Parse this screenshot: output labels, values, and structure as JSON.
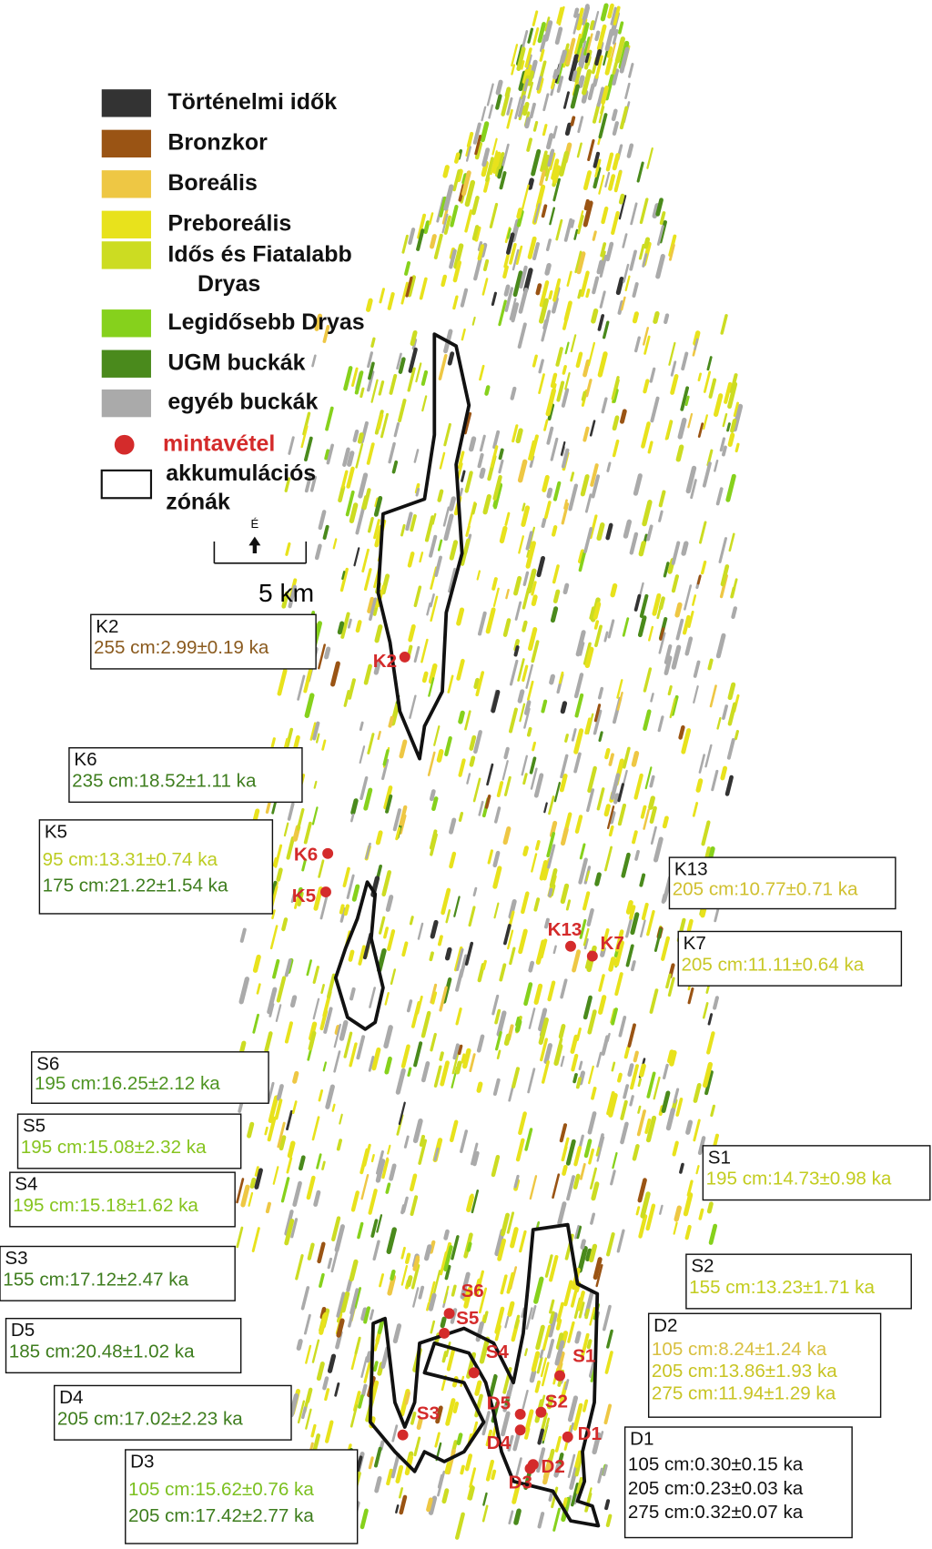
{
  "legend": {
    "items": [
      {
        "label": "Történelmi idők",
        "color": "#333333"
      },
      {
        "label": "Bronzkor",
        "color": "#9a5414"
      },
      {
        "label": "Boreális",
        "color": "#eec744"
      },
      {
        "label": "Preboreális",
        "color": "#e8e21c"
      },
      {
        "label": "Idős és Fiatalabb Dryas",
        "color": "#ccdc22"
      },
      {
        "label": "Legidősebb Dryas",
        "color": "#86d11c"
      },
      {
        "label": "UGM buckák",
        "color": "#4a8a1c"
      },
      {
        "label": "egyéb buckák",
        "color": "#aaaaaa"
      }
    ],
    "sample": {
      "label": "mintavétel",
      "color": "#d42b2b"
    },
    "zone": {
      "label": "akkumulációs zónák"
    }
  },
  "scale": {
    "north": "É",
    "label": "5 km"
  },
  "points": [
    "K2",
    "K6",
    "K5",
    "K13",
    "K7",
    "S6",
    "S5",
    "S4",
    "S1",
    "S2",
    "S3",
    "D5",
    "D4",
    "D1",
    "D2",
    "D3"
  ],
  "boxes": [
    {
      "id": "K2",
      "lines": [
        {
          "text": "255 cm:2.99±0.19 ka",
          "color": "#8a5a1e"
        }
      ]
    },
    {
      "id": "K6",
      "lines": [
        {
          "text": "235 cm:18.52±1.11 ka",
          "color": "#3e7d1e"
        }
      ]
    },
    {
      "id": "K5",
      "lines": [
        {
          "text": "95 cm:13.31±0.74 ka",
          "color": "#bccc22"
        },
        {
          "text": "175 cm:21.22±1.54 ka",
          "color": "#3e7d1e"
        }
      ]
    },
    {
      "id": "K13",
      "lines": [
        {
          "text": "205 cm:10.77±0.71 ka",
          "color": "#d0c030"
        }
      ]
    },
    {
      "id": "K7",
      "lines": [
        {
          "text": "205 cm:11.11±0.64 ka",
          "color": "#c8c826"
        }
      ]
    },
    {
      "id": "S6",
      "lines": [
        {
          "text": "195 cm:16.25±2.12 ka",
          "color": "#4e9422"
        }
      ]
    },
    {
      "id": "S5",
      "lines": [
        {
          "text": "195 cm:15.08±2.32 ka",
          "color": "#86c41e"
        }
      ]
    },
    {
      "id": "S4",
      "lines": [
        {
          "text": "195 cm:15.18±1.62 ka",
          "color": "#86c41e"
        }
      ]
    },
    {
      "id": "S1",
      "lines": [
        {
          "text": "195 cm:14.73±0.98 ka",
          "color": "#c2cc1e"
        }
      ]
    },
    {
      "id": "S3",
      "lines": [
        {
          "text": "155 cm:17.12±2.47 ka",
          "color": "#3e7d1e"
        }
      ]
    },
    {
      "id": "S2",
      "lines": [
        {
          "text": "155 cm:13.23±1.71 ka",
          "color": "#c2cc1e"
        }
      ]
    },
    {
      "id": "D2",
      "lines": [
        {
          "text": "105 cm:8.24±1.24 ka",
          "color": "#d8c040"
        },
        {
          "text": "205 cm:13.86±1.93 ka",
          "color": "#c8c424"
        },
        {
          "text": "275 cm:11.94±1.29 ka",
          "color": "#c8c424"
        }
      ]
    },
    {
      "id": "D5",
      "lines": [
        {
          "text": "185 cm:20.48±1.02 ka",
          "color": "#3e7d1e"
        }
      ]
    },
    {
      "id": "D4",
      "lines": [
        {
          "text": "205 cm:17.02±2.23 ka",
          "color": "#3e7d1e"
        }
      ]
    },
    {
      "id": "D1",
      "lines": [
        {
          "text": "105 cm:0.30±0.15 ka",
          "color": "#111111"
        },
        {
          "text": "205 cm:0.23±0.03 ka",
          "color": "#111111"
        },
        {
          "text": "275 cm:0.32±0.07 ka",
          "color": "#111111"
        }
      ]
    },
    {
      "id": "D3",
      "lines": [
        {
          "text": "105 cm:15.62±0.76 ka",
          "color": "#7cc020"
        },
        {
          "text": "205 cm:17.42±2.77 ka",
          "color": "#3e7d1e"
        }
      ]
    }
  ]
}
